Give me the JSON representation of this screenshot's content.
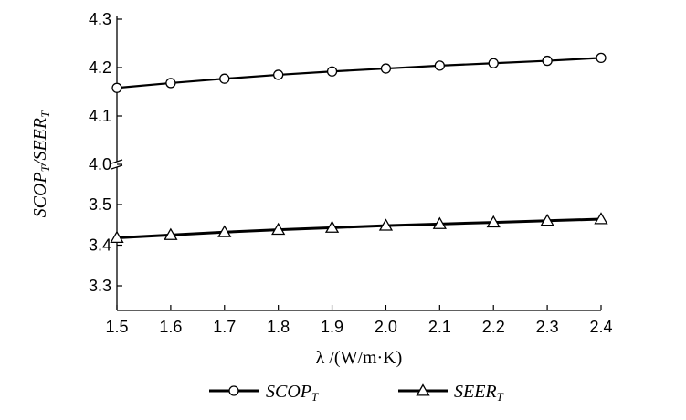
{
  "chart_data": {
    "type": "line",
    "title": "",
    "xlabel": "λ /(W/m·K)",
    "ylabel": "SCOP_T/SEER_T",
    "x": [
      1.5,
      1.6,
      1.7,
      1.8,
      1.9,
      2.0,
      2.1,
      2.2,
      2.3,
      2.4
    ],
    "x_tick_labels": [
      "1.5",
      "1.6",
      "1.7",
      "1.8",
      "1.9",
      "2.0",
      "2.1",
      "2.2",
      "2.3",
      "2.4"
    ],
    "xlim": [
      1.5,
      2.4
    ],
    "y_axis_break": true,
    "y_upper_segment": {
      "ylim": [
        4.0,
        4.3
      ],
      "tick_labels": [
        "4.0",
        "4.1",
        "4.2",
        "4.3"
      ],
      "ticks": [
        4.0,
        4.1,
        4.2,
        4.3
      ]
    },
    "y_lower_segment": {
      "ylim": [
        3.25,
        3.5
      ],
      "tick_labels": [
        "3.3",
        "3.4",
        "3.5"
      ],
      "ticks": [
        3.3,
        3.4,
        3.5
      ]
    },
    "grid": false,
    "legend_position": "bottom",
    "series": [
      {
        "name": "SCOP",
        "name_subscript": "T",
        "marker": "circle",
        "values": [
          4.158,
          4.168,
          4.177,
          4.185,
          4.192,
          4.198,
          4.204,
          4.209,
          4.214,
          4.22
        ]
      },
      {
        "name": "SEER",
        "name_subscript": "T",
        "marker": "triangle",
        "values": [
          3.418,
          3.425,
          3.432,
          3.438,
          3.443,
          3.448,
          3.452,
          3.456,
          3.46,
          3.464
        ]
      }
    ],
    "line_color": "#000000"
  }
}
